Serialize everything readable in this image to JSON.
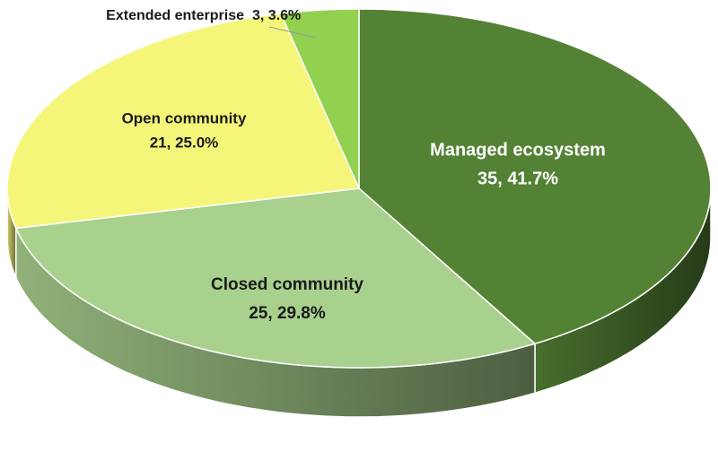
{
  "chart_data": {
    "type": "pie3d",
    "categories": [
      "Managed ecosystem",
      "Closed community",
      "Open community",
      "Extended enterprise"
    ],
    "values": [
      35,
      25,
      21,
      3
    ],
    "value_labels": [
      "35, 41.7%",
      "25, 29.8%",
      "21, 25.0%",
      "3, 3.6%"
    ],
    "colors": [
      "#548235",
      "#a9d18e",
      "#f5f57a",
      "#92d050"
    ]
  }
}
